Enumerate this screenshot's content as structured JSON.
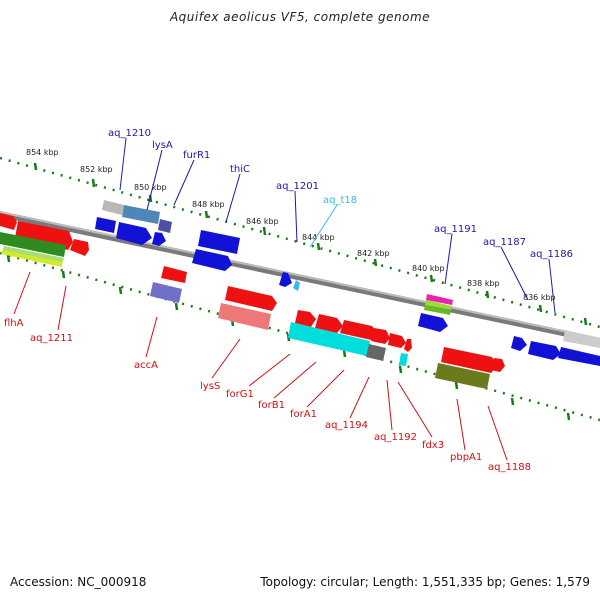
{
  "title": "Aquifex aeolicus VF5, complete genome",
  "footer": {
    "accession": "Accession: NC_000918",
    "summary": "Topology: circular; Length: 1,551,335 bp; Genes: 1,579"
  },
  "colors": {
    "label_top": "#1a1aa8",
    "label_bottom": "#cc1111",
    "label_rna": "#33bbee",
    "tick": "#1a7a1a",
    "backbone": "#777777"
  },
  "scale_labels": [
    "854 kbp",
    "852 kbp",
    "850 kbp",
    "848 kbp",
    "846 kbp",
    "844 kbp",
    "842 kbp",
    "840 kbp",
    "838 kbp",
    "836 kbp"
  ],
  "genes_top": [
    "aq_1210",
    "lysA",
    "furR1",
    "thiC",
    "aq_1201",
    "aq_t18",
    "aq_1191",
    "aq_1187",
    "aq_1186"
  ],
  "genes_bottom": [
    "flhA",
    "aq_1211",
    "accA",
    "lysS",
    "forG1",
    "forB1",
    "forA1",
    "aq_1194",
    "aq_1192",
    "fdx3",
    "pbpA1",
    "aq_1188"
  ]
}
